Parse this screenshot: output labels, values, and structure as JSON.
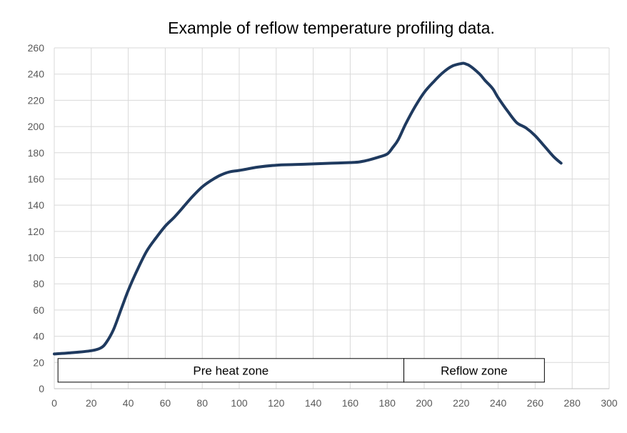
{
  "chart_data": {
    "type": "line",
    "title": "Example of reflow temperature profiling data.",
    "xlabel": "",
    "ylabel": "",
    "xlim": [
      0,
      300
    ],
    "ylim": [
      0,
      260
    ],
    "x_ticks": [
      0,
      20,
      40,
      60,
      80,
      100,
      120,
      140,
      160,
      180,
      200,
      220,
      240,
      260,
      280,
      300
    ],
    "y_ticks": [
      0,
      20,
      40,
      60,
      80,
      100,
      120,
      140,
      160,
      180,
      200,
      220,
      240,
      260
    ],
    "grid": true,
    "legend": "none",
    "line_color": "#1f3a5f",
    "series": [
      {
        "x": [
          0,
          10,
          20,
          25,
          28,
          32,
          36,
          40,
          45,
          50,
          55,
          60,
          65,
          70,
          75,
          80,
          85,
          90,
          95,
          100,
          110,
          120,
          130,
          140,
          150,
          160,
          165,
          170,
          175,
          180,
          183,
          186,
          190,
          195,
          200,
          205,
          210,
          215,
          220,
          222,
          225,
          230,
          233,
          237,
          240,
          245,
          250,
          255,
          260,
          265,
          270,
          274
        ],
        "y": [
          26.5,
          27.5,
          29,
          31,
          35,
          45,
          60,
          75,
          91,
          105,
          115,
          124,
          131,
          139,
          147,
          154,
          159,
          163,
          165.5,
          166.5,
          169,
          170.5,
          171,
          171.5,
          172,
          172.5,
          173,
          174.5,
          176.5,
          179,
          184,
          190,
          202,
          215,
          226,
          234,
          241,
          246,
          248,
          248,
          246,
          240,
          235,
          229,
          222,
          212,
          203,
          199,
          193,
          185,
          177,
          172
        ]
      }
    ],
    "annotations": [
      {
        "label": "Pre heat zone",
        "x_start": 2,
        "x_end": 189,
        "y_bottom": 5,
        "y_top": 23
      },
      {
        "label": "Reflow zone",
        "x_start": 189,
        "x_end": 265,
        "y_bottom": 5,
        "y_top": 23
      }
    ]
  }
}
